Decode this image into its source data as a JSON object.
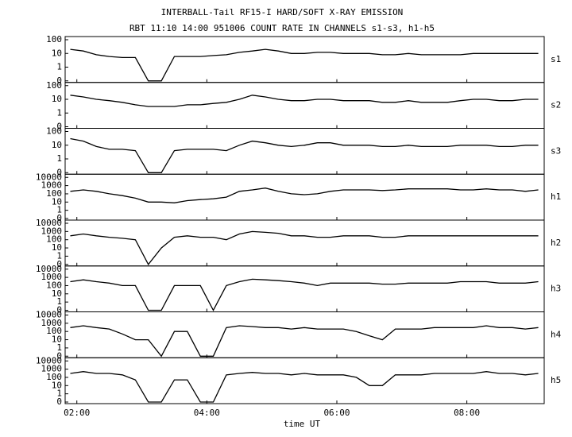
{
  "chart_data": {
    "type": "line",
    "title": "INTERBALL-Tail RF15-I HARD/SOFT X-RAY EMISSION",
    "subtitle": "RBT 11:10 14:00 951006  COUNT RATE IN CHANNELS s1-s3, h1-h5",
    "xlabel": "time UT",
    "log": true,
    "x": [
      1.9,
      2.1,
      2.3,
      2.5,
      2.7,
      2.9,
      3.1,
      3.3,
      3.5,
      3.7,
      3.9,
      4.1,
      4.3,
      4.5,
      4.7,
      4.9,
      5.1,
      5.3,
      5.5,
      5.7,
      5.9,
      6.1,
      6.3,
      6.5,
      6.7,
      6.9,
      7.1,
      7.3,
      7.5,
      7.7,
      7.9,
      8.1,
      8.3,
      8.5,
      8.7,
      8.9,
      9.1
    ],
    "xlim": [
      1.82,
      9.19
    ],
    "xticks": [
      {
        "value": 2,
        "label": "02:00"
      },
      {
        "value": 4,
        "label": "04:00"
      },
      {
        "value": 6,
        "label": "06:00"
      },
      {
        "value": 8,
        "label": "08:00"
      }
    ],
    "series": [
      {
        "name": "s1",
        "color": "#000000",
        "ylim": [
          0,
          100
        ],
        "yticks": [
          0,
          1,
          10,
          100
        ],
        "values": [
          20,
          15,
          8,
          6,
          5,
          5,
          0,
          0,
          6,
          6,
          6,
          7,
          8,
          12,
          15,
          20,
          15,
          10,
          10,
          12,
          12,
          10,
          10,
          10,
          8,
          8,
          10,
          8,
          8,
          8,
          8,
          10,
          10,
          10,
          10,
          10,
          10
        ]
      },
      {
        "name": "s2",
        "color": "#000000",
        "ylim": [
          0,
          100
        ],
        "yticks": [
          0,
          1,
          10,
          100
        ],
        "values": [
          20,
          15,
          10,
          8,
          6,
          4,
          3,
          3,
          3,
          4,
          4,
          5,
          6,
          10,
          20,
          15,
          10,
          8,
          8,
          10,
          10,
          8,
          8,
          8,
          6,
          6,
          8,
          6,
          6,
          6,
          8,
          10,
          10,
          8,
          8,
          10,
          10
        ]
      },
      {
        "name": "s3",
        "color": "#000000",
        "ylim": [
          0,
          100
        ],
        "yticks": [
          0,
          1,
          10,
          100
        ],
        "values": [
          30,
          20,
          8,
          5,
          5,
          4,
          0,
          0,
          4,
          5,
          5,
          5,
          4,
          10,
          20,
          15,
          10,
          8,
          10,
          15,
          15,
          10,
          10,
          10,
          8,
          8,
          10,
          8,
          8,
          8,
          10,
          10,
          10,
          8,
          8,
          10,
          10
        ]
      },
      {
        "name": "h1",
        "color": "#000000",
        "ylim": [
          0,
          10000
        ],
        "yticks": [
          0,
          1,
          10,
          100,
          1000,
          10000
        ],
        "values": [
          200,
          300,
          200,
          100,
          60,
          30,
          10,
          10,
          8,
          15,
          20,
          25,
          40,
          200,
          300,
          500,
          200,
          100,
          80,
          100,
          200,
          300,
          300,
          300,
          250,
          300,
          400,
          400,
          400,
          400,
          300,
          300,
          400,
          300,
          300,
          200,
          300
        ]
      },
      {
        "name": "h2",
        "color": "#000000",
        "ylim": [
          0,
          10000
        ],
        "yticks": [
          0,
          1,
          10,
          100,
          1000,
          10000
        ],
        "values": [
          300,
          500,
          300,
          200,
          150,
          100,
          0,
          10,
          200,
          300,
          200,
          200,
          100,
          500,
          1000,
          800,
          600,
          300,
          300,
          200,
          200,
          300,
          300,
          300,
          200,
          200,
          300,
          300,
          300,
          300,
          300,
          300,
          300,
          300,
          300,
          300,
          300
        ]
      },
      {
        "name": "h3",
        "color": "#000000",
        "ylim": [
          0,
          10000
        ],
        "yticks": [
          0,
          1,
          10,
          100,
          1000,
          10000
        ],
        "values": [
          300,
          500,
          300,
          200,
          100,
          100,
          0,
          0,
          100,
          100,
          100,
          0,
          100,
          300,
          600,
          500,
          400,
          300,
          200,
          100,
          200,
          200,
          200,
          200,
          150,
          150,
          200,
          200,
          200,
          200,
          300,
          300,
          300,
          200,
          200,
          200,
          300
        ]
      },
      {
        "name": "h4",
        "color": "#000000",
        "ylim": [
          0,
          10000
        ],
        "yticks": [
          0,
          1,
          10,
          100,
          1000,
          10000
        ],
        "values": [
          300,
          500,
          300,
          200,
          50,
          10,
          10,
          0,
          100,
          100,
          0,
          0,
          300,
          500,
          400,
          300,
          300,
          200,
          300,
          200,
          200,
          200,
          100,
          30,
          10,
          200,
          200,
          200,
          300,
          300,
          300,
          300,
          500,
          300,
          300,
          200,
          300
        ]
      },
      {
        "name": "h5",
        "color": "#000000",
        "ylim": [
          0,
          10000
        ],
        "yticks": [
          0,
          1,
          10,
          100,
          1000,
          10000
        ],
        "values": [
          300,
          500,
          300,
          300,
          200,
          50,
          0,
          0,
          50,
          50,
          0,
          0,
          200,
          300,
          400,
          300,
          300,
          200,
          300,
          200,
          200,
          200,
          100,
          10,
          10,
          200,
          200,
          200,
          300,
          300,
          300,
          300,
          500,
          300,
          300,
          200,
          300
        ]
      }
    ]
  }
}
